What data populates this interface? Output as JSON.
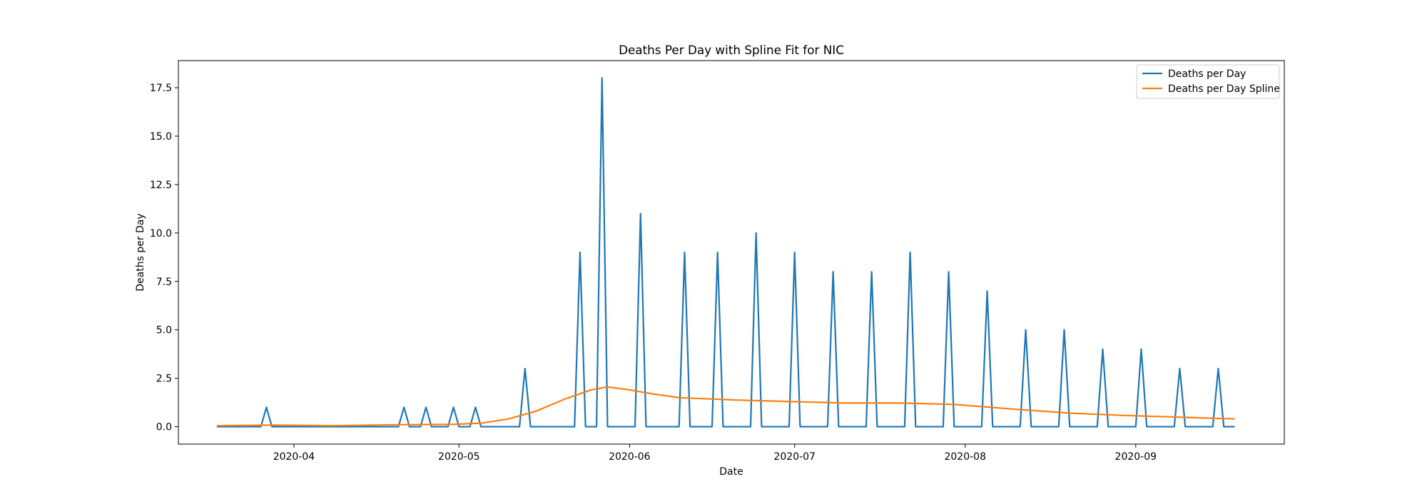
{
  "chart_data": {
    "type": "line",
    "title": "Deaths Per Day with Spline Fit for NIC",
    "xlabel": "Date",
    "ylabel": "Deaths per Day",
    "xlim": [
      "2020-03-11",
      "2020-09-28"
    ],
    "ylim": [
      -0.9,
      18.9
    ],
    "x_ticks": [
      "2020-04",
      "2020-05",
      "2020-06",
      "2020-07",
      "2020-08",
      "2020-09"
    ],
    "x_tick_dates": [
      "2020-04-01",
      "2020-05-01",
      "2020-06-01",
      "2020-07-01",
      "2020-08-01",
      "2020-09-01"
    ],
    "y_ticks": [
      "0.0",
      "2.5",
      "5.0",
      "7.5",
      "10.0",
      "12.5",
      "15.0",
      "17.5"
    ],
    "y_tick_values": [
      0,
      2.5,
      5,
      7.5,
      10,
      12.5,
      15,
      17.5
    ],
    "legend_position": "top-right",
    "grid": false,
    "series": [
      {
        "name": "Deaths per Day",
        "color": "#1f77b4",
        "x": [
          "2020-03-18",
          "2020-03-26",
          "2020-03-27",
          "2020-03-28",
          "2020-04-20",
          "2020-04-21",
          "2020-04-22",
          "2020-04-24",
          "2020-04-25",
          "2020-04-26",
          "2020-04-29",
          "2020-04-30",
          "2020-05-01",
          "2020-05-03",
          "2020-05-04",
          "2020-05-05",
          "2020-05-12",
          "2020-05-13",
          "2020-05-14",
          "2020-05-22",
          "2020-05-23",
          "2020-05-24",
          "2020-05-25",
          "2020-05-26",
          "2020-05-27",
          "2020-05-28",
          "2020-06-02",
          "2020-06-03",
          "2020-06-04",
          "2020-06-10",
          "2020-06-11",
          "2020-06-12",
          "2020-06-16",
          "2020-06-17",
          "2020-06-18",
          "2020-06-23",
          "2020-06-24",
          "2020-06-25",
          "2020-06-30",
          "2020-07-01",
          "2020-07-02",
          "2020-07-07",
          "2020-07-08",
          "2020-07-09",
          "2020-07-14",
          "2020-07-15",
          "2020-07-16",
          "2020-07-21",
          "2020-07-22",
          "2020-07-23",
          "2020-07-28",
          "2020-07-29",
          "2020-07-30",
          "2020-08-04",
          "2020-08-05",
          "2020-08-06",
          "2020-08-11",
          "2020-08-12",
          "2020-08-13",
          "2020-08-18",
          "2020-08-19",
          "2020-08-20",
          "2020-08-25",
          "2020-08-26",
          "2020-08-27",
          "2020-09-01",
          "2020-09-02",
          "2020-09-03",
          "2020-09-08",
          "2020-09-09",
          "2020-09-10",
          "2020-09-15",
          "2020-09-16",
          "2020-09-17",
          "2020-09-19"
        ],
        "values": [
          0,
          0,
          1,
          0,
          0,
          1,
          0,
          0,
          1,
          0,
          0,
          1,
          0,
          0,
          1,
          0,
          0,
          3,
          0,
          0,
          9,
          0,
          0,
          0,
          18,
          0,
          0,
          11,
          0,
          0,
          9,
          0,
          0,
          9,
          0,
          0,
          10,
          0,
          0,
          9,
          0,
          0,
          8,
          0,
          0,
          8,
          0,
          0,
          9,
          0,
          0,
          8,
          0,
          0,
          7,
          0,
          0,
          5,
          0,
          0,
          5,
          0,
          0,
          4,
          0,
          0,
          4,
          0,
          0,
          3,
          0,
          0,
          3,
          0,
          0
        ]
      },
      {
        "name": "Deaths per Day Spline",
        "color": "#ff7f0e",
        "x": [
          "2020-03-18",
          "2020-03-28",
          "2020-04-08",
          "2020-04-20",
          "2020-04-30",
          "2020-05-05",
          "2020-05-10",
          "2020-05-15",
          "2020-05-20",
          "2020-05-25",
          "2020-05-28",
          "2020-06-01",
          "2020-06-05",
          "2020-06-10",
          "2020-06-20",
          "2020-06-30",
          "2020-07-10",
          "2020-07-20",
          "2020-07-30",
          "2020-08-10",
          "2020-08-20",
          "2020-08-30",
          "2020-09-10",
          "2020-09-19"
        ],
        "values": [
          0.05,
          0.08,
          0.05,
          0.1,
          0.12,
          0.18,
          0.4,
          0.8,
          1.4,
          1.9,
          2.05,
          1.9,
          1.7,
          1.5,
          1.38,
          1.3,
          1.22,
          1.22,
          1.15,
          0.9,
          0.7,
          0.58,
          0.48,
          0.4
        ]
      }
    ]
  }
}
